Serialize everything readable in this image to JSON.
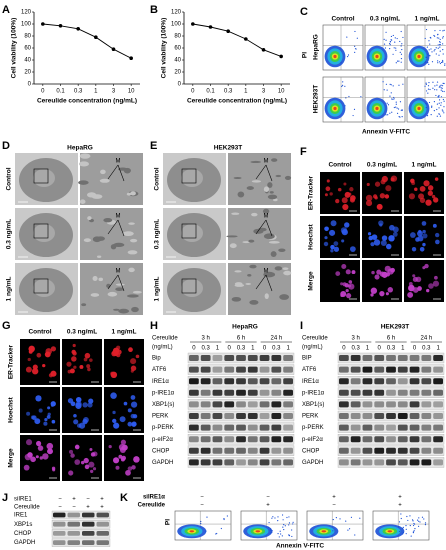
{
  "panel_labels": [
    "A",
    "B",
    "C",
    "D",
    "E",
    "F",
    "G",
    "H",
    "I",
    "J",
    "K"
  ],
  "chart_data": [
    {
      "type": "line",
      "xlabel": "Cereulide concentration (ng/mL)",
      "ylabel": "Cell viability (100%)",
      "categories": [
        "0",
        "0.1",
        "0.3",
        "1",
        "3",
        "10"
      ],
      "values": [
        100,
        97,
        92,
        78,
        58,
        43
      ],
      "color": "#000000",
      "ylim": [
        0,
        120
      ],
      "yticks": [
        0,
        20,
        40,
        60,
        80,
        100,
        120
      ]
    },
    {
      "type": "line",
      "xlabel": "Cereulide concentration (ng/mL)",
      "ylabel": "Cell viability (100%)",
      "categories": [
        "0",
        "0.1",
        "0.3",
        "1",
        "3",
        "10"
      ],
      "values": [
        100,
        95,
        88,
        75,
        57,
        46
      ],
      "color": "#000000",
      "ylim": [
        0,
        120
      ],
      "yticks": [
        0,
        20,
        40,
        60,
        80,
        100,
        120
      ]
    }
  ],
  "flow_c": {
    "columns": [
      "Control",
      "0.3 ng/mL",
      "1 ng/mL"
    ],
    "rows": [
      "HepaRG",
      "HEK293T"
    ],
    "y_label": "PI",
    "x_label": "Annexin V-FITC"
  },
  "tem_d": {
    "title": "HepaRG",
    "rows": [
      "Control",
      "0.3 ng/mL",
      "1 ng/mL"
    ],
    "marker": "M"
  },
  "tem_e": {
    "title": "HEK293T",
    "rows": [
      "Control",
      "0.3 ng/mL",
      "1 ng/mL"
    ],
    "marker": "M"
  },
  "fluor_f": {
    "columns": [
      "Control",
      "0.3 ng/mL",
      "1 ng/mL"
    ],
    "rows": [
      "ER-Tracker",
      "Hoechst",
      "Merge"
    ]
  },
  "fluor_g": {
    "columns": [
      "Control",
      "0.3 ng/mL",
      "1 ng/mL"
    ],
    "rows": [
      "ER-Tracker",
      "Hoechst",
      "Merge"
    ]
  },
  "blot_h": {
    "title": "HepaRG",
    "treatment": "Cereulide",
    "unit": "(ng/mL)",
    "times": [
      "3 h",
      "6 h",
      "24 h"
    ],
    "doses": [
      "0",
      "0.3",
      "1"
    ],
    "proteins": [
      "Bip",
      "ATF6",
      "IRE1α",
      "p-IRE1α",
      "XBP1(s)",
      "PERK",
      "p-PERK",
      "p-eIF2α",
      "CHOP",
      "GAPDH"
    ]
  },
  "blot_i": {
    "title": "HEK293T",
    "treatment": "Cereulide",
    "unit": "(ng/mL)",
    "times": [
      "3 h",
      "6 h",
      "24 h"
    ],
    "doses": [
      "0",
      "0.3",
      "1"
    ],
    "proteins": [
      "BIP",
      "ATF6",
      "IRE1α",
      "p-IRE1α",
      "XBP1(s)",
      "PERK",
      "p-PERK",
      "p-eIF2α",
      "CHOP",
      "GAPDH"
    ]
  },
  "blot_j": {
    "conditions": [
      {
        "name": "siIRE1",
        "signs": [
          "−",
          "+",
          "−",
          "+"
        ]
      },
      {
        "name": "Cereulide",
        "signs": [
          "−",
          "−",
          "+",
          "+"
        ]
      }
    ],
    "proteins": [
      "IRE1",
      "XBP1s",
      "CHOP",
      "GAPDH"
    ]
  },
  "flow_k": {
    "conditions": [
      {
        "name": "siIRE1α",
        "signs": [
          "−",
          "−",
          "+",
          "+"
        ]
      },
      {
        "name": "Cereulide",
        "signs": [
          "−",
          "+",
          "−",
          "+"
        ]
      }
    ],
    "y_label": "PI",
    "x_label": "Annexin V-FITC"
  }
}
